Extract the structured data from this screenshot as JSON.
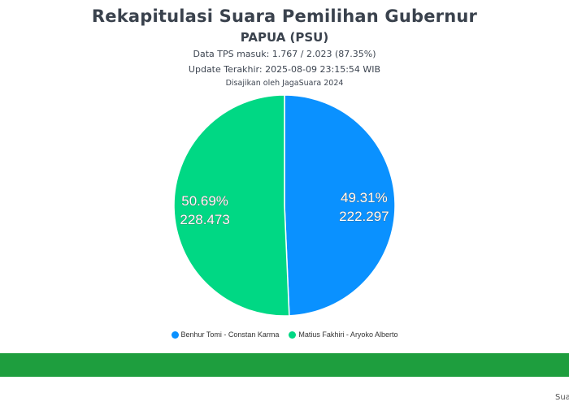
{
  "header": {
    "title": "Rekapitulasi Suara Pemilihan Gubernur",
    "subtitle": "PAPUA (PSU)",
    "tps_info": "Data TPS masuk: 1.767 / 2.023 (87.35%)",
    "update_info": "Update Terakhir: 2025-08-09 23:15:54 WIB",
    "source_info": "Disajikan oleh JagaSuara 2024"
  },
  "chart_data": {
    "type": "pie",
    "title": "Rekapitulasi Suara Pemilihan Gubernur",
    "subtitle": "PAPUA (PSU)",
    "categories": [
      "Benhur Tomi - Constan Karma",
      "Matius Fakhiri - Aryoko Alberto"
    ],
    "values": [
      222297,
      228473
    ],
    "percent_labels": [
      "49.31%",
      "50.69%"
    ],
    "value_labels": [
      "222.297",
      "228.473"
    ],
    "colors": [
      "#0a91ff",
      "#00d884"
    ],
    "legend_position": "bottom"
  },
  "footer": {
    "text": "Sua"
  }
}
